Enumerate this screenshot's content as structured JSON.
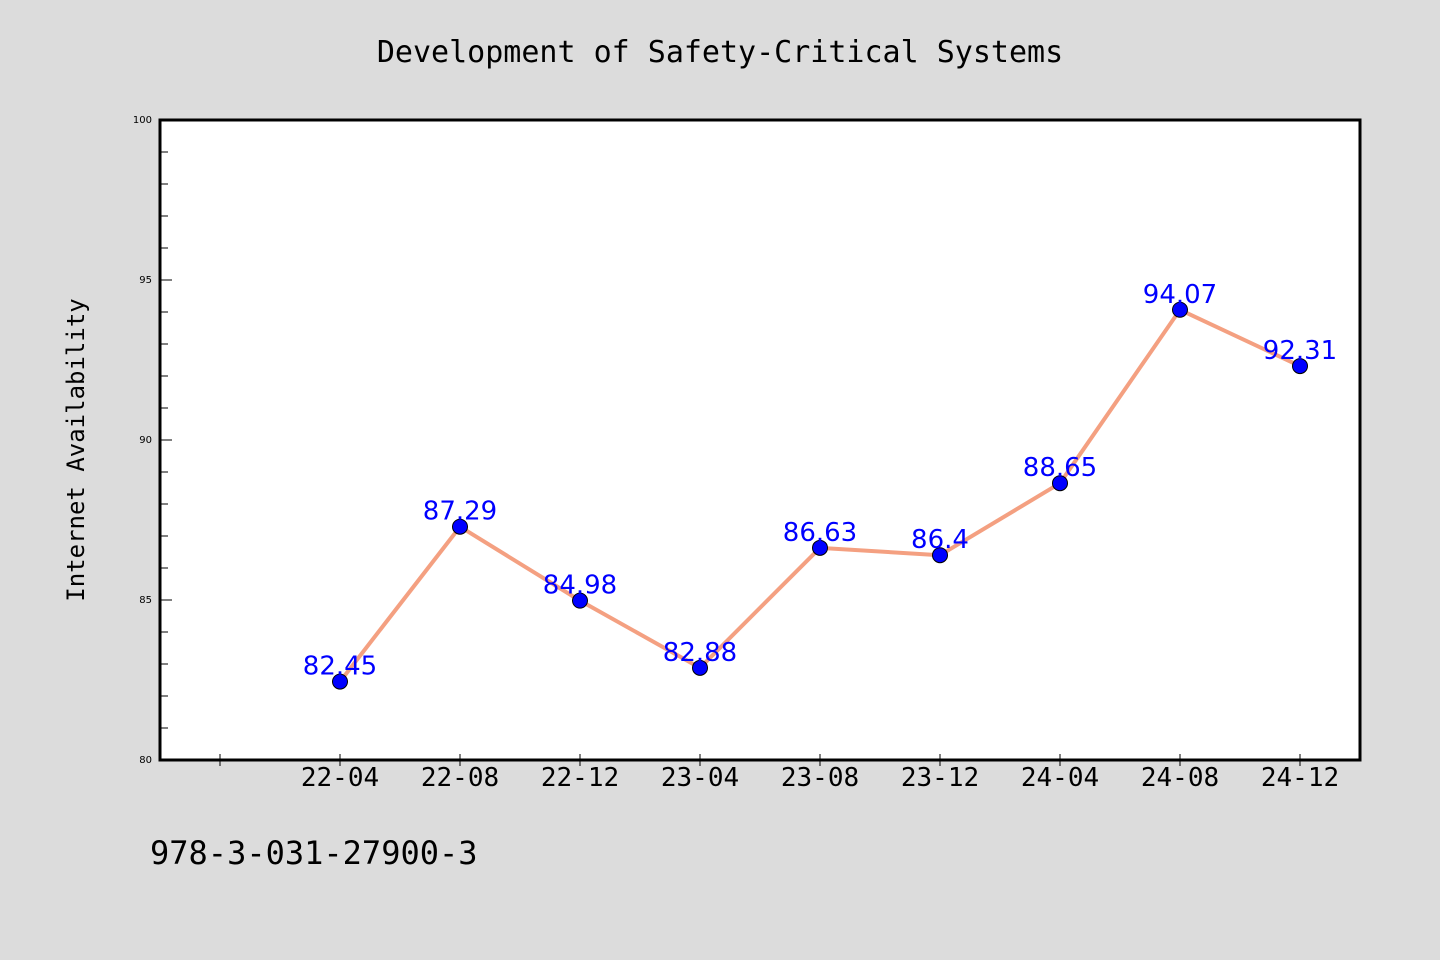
{
  "colors": {
    "background": "#dcdcdc",
    "plot_background": "#ffffff",
    "line": "#f4a081",
    "marker": "#0000ff",
    "data_label": "#0000ff",
    "axis": "#000000"
  },
  "footer": {
    "isbn": "978-3-031-27900-3"
  },
  "chart_data": {
    "type": "line",
    "title": "Development of Safety-Critical Systems",
    "xlabel": "",
    "ylabel": "Internet Availability",
    "ylim": [
      80,
      100
    ],
    "y_ticks": [
      "80",
      "85",
      "90",
      "95",
      "100"
    ],
    "grid": false,
    "x": [
      "22-04",
      "22-08",
      "22-12",
      "23-04",
      "23-08",
      "23-12",
      "24-04",
      "24-08",
      "24-12"
    ],
    "series": [
      {
        "values": [
          82.45,
          87.29,
          84.98,
          82.88,
          86.63,
          86.4,
          88.65,
          94.07,
          92.31
        ],
        "labels": [
          "82.45",
          "87.29",
          "84.98",
          "82.88",
          "86.63",
          "86.4",
          "88.65",
          "94.07",
          "92.31"
        ]
      }
    ]
  }
}
